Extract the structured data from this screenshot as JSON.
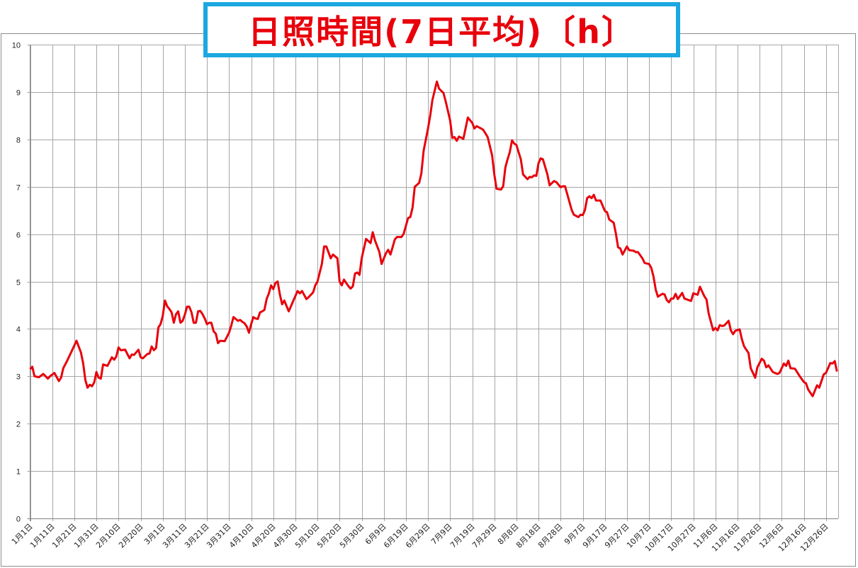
{
  "chart_data": {
    "type": "line",
    "title": "日照時間(7日平均)〔h〕",
    "xlabel": "",
    "ylabel": "",
    "ylim": [
      0,
      10
    ],
    "yticks": [
      "0",
      "1",
      "2",
      "3",
      "4",
      "5",
      "6",
      "7",
      "8",
      "9",
      "10"
    ],
    "xticks": [
      "1月1日",
      "1月11日",
      "1月21日",
      "1月31日",
      "2月10日",
      "2月20日",
      "3月1日",
      "3月11日",
      "3月21日",
      "3月31日",
      "4月10日",
      "4月20日",
      "4月30日",
      "5月10日",
      "5月20日",
      "5月30日",
      "6月9日",
      "6月19日",
      "6月29日",
      "7月9日",
      "7月19日",
      "7月29日",
      "8月8日",
      "8月18日",
      "8月28日",
      "9月7日",
      "9月17日",
      "9月27日",
      "10月7日",
      "10月17日",
      "10月27日",
      "11月6日",
      "11月16日",
      "11月26日",
      "12月6日",
      "12月16日",
      "12月26日"
    ],
    "grid": true,
    "legend": "none",
    "colors": {
      "line": "#e8000b",
      "title": "#e8000b",
      "title_border": "#1ba8e0",
      "grid": "#a6a6a6"
    },
    "series": [
      {
        "points": [
          [
            "1/1",
            3.15
          ],
          [
            "1/2",
            3.2
          ],
          [
            "1/3",
            3.0
          ],
          [
            "1/5",
            2.98
          ],
          [
            "1/7",
            3.05
          ],
          [
            "1/9",
            2.95
          ],
          [
            "1/10",
            3.0
          ],
          [
            "1/12",
            3.07
          ],
          [
            "1/14",
            2.9
          ],
          [
            "1/15",
            2.97
          ],
          [
            "1/16",
            3.17
          ],
          [
            "1/18",
            3.35
          ],
          [
            "1/20",
            3.55
          ],
          [
            "1/22",
            3.75
          ],
          [
            "1/24",
            3.5
          ],
          [
            "1/25",
            3.27
          ],
          [
            "1/26",
            2.92
          ],
          [
            "1/27",
            2.76
          ],
          [
            "1/28",
            2.82
          ],
          [
            "1/29",
            2.79
          ],
          [
            "1/30",
            2.87
          ],
          [
            "1/31",
            3.09
          ],
          [
            "2/1",
            2.97
          ],
          [
            "2/2",
            2.95
          ],
          [
            "2/3",
            3.25
          ],
          [
            "2/5",
            3.22
          ],
          [
            "2/7",
            3.4
          ],
          [
            "2/8",
            3.35
          ],
          [
            "2/9",
            3.42
          ],
          [
            "2/10",
            3.61
          ],
          [
            "2/11",
            3.55
          ],
          [
            "2/13",
            3.56
          ],
          [
            "2/15",
            3.38
          ],
          [
            "2/16",
            3.46
          ],
          [
            "2/17",
            3.45
          ],
          [
            "2/19",
            3.56
          ],
          [
            "2/20",
            3.4
          ],
          [
            "2/21",
            3.38
          ],
          [
            "2/23",
            3.47
          ],
          [
            "2/24",
            3.48
          ],
          [
            "2/25",
            3.63
          ],
          [
            "2/26",
            3.55
          ],
          [
            "2/27",
            3.6
          ],
          [
            "2/28",
            4.03
          ],
          [
            "2/29",
            4.1
          ],
          [
            "3/1",
            4.27
          ],
          [
            "3/2",
            4.6
          ],
          [
            "3/3",
            4.48
          ],
          [
            "3/4",
            4.42
          ],
          [
            "3/5",
            4.35
          ],
          [
            "3/6",
            4.13
          ],
          [
            "3/7",
            4.31
          ],
          [
            "3/8",
            4.37
          ],
          [
            "3/9",
            4.13
          ],
          [
            "3/10",
            4.17
          ],
          [
            "3/11",
            4.3
          ],
          [
            "3/12",
            4.47
          ],
          [
            "3/13",
            4.47
          ],
          [
            "3/14",
            4.35
          ],
          [
            "3/15",
            4.13
          ],
          [
            "3/16",
            4.13
          ],
          [
            "3/17",
            4.37
          ],
          [
            "3/18",
            4.38
          ],
          [
            "3/19",
            4.31
          ],
          [
            "3/20",
            4.22
          ],
          [
            "3/21",
            4.1
          ],
          [
            "3/22",
            4.13
          ],
          [
            "3/23",
            4.13
          ],
          [
            "3/24",
            3.95
          ],
          [
            "3/25",
            3.9
          ],
          [
            "3/26",
            3.7
          ],
          [
            "3/27",
            3.75
          ],
          [
            "3/29",
            3.74
          ],
          [
            "3/31",
            3.92
          ],
          [
            "4/1",
            4.07
          ],
          [
            "4/2",
            4.25
          ],
          [
            "4/3",
            4.21
          ],
          [
            "4/4",
            4.17
          ],
          [
            "4/5",
            4.19
          ],
          [
            "4/6",
            4.15
          ],
          [
            "4/7",
            4.12
          ],
          [
            "4/8",
            4.05
          ],
          [
            "4/9",
            3.92
          ],
          [
            "4/10",
            4.1
          ],
          [
            "4/11",
            4.25
          ],
          [
            "4/12",
            4.22
          ],
          [
            "4/13",
            4.21
          ],
          [
            "4/14",
            4.35
          ],
          [
            "4/15",
            4.37
          ],
          [
            "4/16",
            4.4
          ],
          [
            "4/17",
            4.63
          ],
          [
            "4/18",
            4.75
          ],
          [
            "4/19",
            4.92
          ],
          [
            "4/20",
            4.84
          ],
          [
            "4/21",
            4.97
          ],
          [
            "4/22",
            5.0
          ],
          [
            "4/23",
            4.72
          ],
          [
            "4/24",
            4.52
          ],
          [
            "4/25",
            4.6
          ],
          [
            "4/27",
            4.37
          ],
          [
            "5/1",
            4.8
          ],
          [
            "5/2",
            4.75
          ],
          [
            "5/3",
            4.8
          ],
          [
            "5/5",
            4.63
          ],
          [
            "5/6",
            4.67
          ],
          [
            "5/8",
            4.77
          ],
          [
            "5/9",
            4.92
          ],
          [
            "5/10",
            5.0
          ],
          [
            "5/12",
            5.37
          ],
          [
            "5/13",
            5.74
          ],
          [
            "5/14",
            5.74
          ],
          [
            "5/16",
            5.49
          ],
          [
            "5/17",
            5.57
          ],
          [
            "5/19",
            5.49
          ],
          [
            "5/20",
            5.0
          ],
          [
            "5/21",
            4.92
          ],
          [
            "5/22",
            5.04
          ],
          [
            "5/24",
            4.9
          ],
          [
            "5/25",
            4.85
          ],
          [
            "5/26",
            4.9
          ],
          [
            "5/27",
            5.17
          ],
          [
            "5/28",
            5.19
          ],
          [
            "5/29",
            5.14
          ],
          [
            "5/30",
            5.49
          ],
          [
            "6/1",
            5.9
          ],
          [
            "6/3",
            5.81
          ],
          [
            "6/4",
            6.04
          ],
          [
            "6/5",
            5.87
          ],
          [
            "6/7",
            5.62
          ],
          [
            "6/8",
            5.37
          ],
          [
            "6/10",
            5.6
          ],
          [
            "6/11",
            5.67
          ],
          [
            "6/12",
            5.57
          ],
          [
            "6/14",
            5.89
          ],
          [
            "6/15",
            5.94
          ],
          [
            "6/17",
            5.94
          ],
          [
            "6/18",
            6.01
          ],
          [
            "6/20",
            6.34
          ],
          [
            "6/21",
            6.36
          ],
          [
            "6/22",
            6.56
          ],
          [
            "6/23",
            7.0
          ],
          [
            "6/25",
            7.08
          ],
          [
            "6/26",
            7.28
          ],
          [
            "6/27",
            7.76
          ],
          [
            "6/29",
            8.23
          ],
          [
            "6/30",
            8.5
          ],
          [
            "7/1",
            8.83
          ],
          [
            "7/3",
            9.22
          ],
          [
            "7/4",
            9.07
          ],
          [
            "7/6",
            8.98
          ],
          [
            "7/7",
            8.8
          ],
          [
            "7/9",
            8.4
          ],
          [
            "7/10",
            8.03
          ],
          [
            "7/11",
            8.05
          ],
          [
            "7/12",
            7.97
          ],
          [
            "7/13",
            8.06
          ],
          [
            "7/15",
            8.01
          ],
          [
            "7/16",
            8.23
          ],
          [
            "7/17",
            8.46
          ],
          [
            "7/19",
            8.35
          ],
          [
            "7/20",
            8.23
          ],
          [
            "7/21",
            8.28
          ],
          [
            "7/23",
            8.23
          ],
          [
            "7/24",
            8.2
          ],
          [
            "7/26",
            8.05
          ],
          [
            "7/28",
            7.66
          ],
          [
            "7/29",
            7.26
          ],
          [
            "7/30",
            6.96
          ],
          [
            "8/1",
            6.94
          ],
          [
            "8/2",
            7.01
          ],
          [
            "8/3",
            7.41
          ],
          [
            "8/4",
            7.58
          ],
          [
            "8/5",
            7.73
          ],
          [
            "8/6",
            7.98
          ],
          [
            "8/7",
            7.91
          ],
          [
            "8/8",
            7.88
          ],
          [
            "8/10",
            7.58
          ],
          [
            "8/11",
            7.26
          ],
          [
            "8/13",
            7.16
          ],
          [
            "8/14",
            7.21
          ],
          [
            "8/15",
            7.2
          ],
          [
            "8/16",
            7.24
          ],
          [
            "8/17",
            7.23
          ],
          [
            "8/18",
            7.5
          ],
          [
            "8/19",
            7.6
          ],
          [
            "8/20",
            7.58
          ],
          [
            "8/22",
            7.26
          ],
          [
            "8/23",
            7.03
          ],
          [
            "8/25",
            7.12
          ],
          [
            "8/26",
            7.1
          ],
          [
            "8/28",
            6.99
          ],
          [
            "8/29",
            7.01
          ],
          [
            "8/30",
            7.01
          ],
          [
            "8/31",
            6.84
          ],
          [
            "9/2",
            6.51
          ],
          [
            "9/3",
            6.41
          ],
          [
            "9/5",
            6.36
          ],
          [
            "9/6",
            6.41
          ],
          [
            "9/7",
            6.4
          ],
          [
            "9/8",
            6.51
          ],
          [
            "9/9",
            6.76
          ],
          [
            "9/10",
            6.8
          ],
          [
            "9/11",
            6.76
          ],
          [
            "9/12",
            6.83
          ],
          [
            "9/13",
            6.71
          ],
          [
            "9/15",
            6.71
          ],
          [
            "9/17",
            6.49
          ],
          [
            "9/18",
            6.46
          ],
          [
            "9/19",
            6.31
          ],
          [
            "9/21",
            6.24
          ],
          [
            "9/22",
            6.01
          ],
          [
            "9/23",
            5.72
          ],
          [
            "9/24",
            5.7
          ],
          [
            "9/25",
            5.57
          ],
          [
            "9/27",
            5.74
          ],
          [
            "9/28",
            5.66
          ],
          [
            "9/30",
            5.65
          ],
          [
            "10/1",
            5.62
          ],
          [
            "10/2",
            5.62
          ],
          [
            "10/4",
            5.49
          ],
          [
            "10/5",
            5.39
          ],
          [
            "10/7",
            5.37
          ],
          [
            "10/8",
            5.29
          ],
          [
            "10/9",
            5.11
          ],
          [
            "10/10",
            4.83
          ],
          [
            "10/11",
            4.68
          ],
          [
            "10/13",
            4.74
          ],
          [
            "10/14",
            4.73
          ],
          [
            "10/15",
            4.61
          ],
          [
            "10/16",
            4.56
          ],
          [
            "10/17",
            4.64
          ],
          [
            "10/18",
            4.64
          ],
          [
            "10/19",
            4.74
          ],
          [
            "10/20",
            4.63
          ],
          [
            "10/22",
            4.76
          ],
          [
            "10/23",
            4.64
          ],
          [
            "10/26",
            4.59
          ],
          [
            "10/27",
            4.75
          ],
          [
            "10/29",
            4.72
          ],
          [
            "10/30",
            4.89
          ],
          [
            "11/1",
            4.69
          ],
          [
            "11/2",
            4.62
          ],
          [
            "11/3",
            4.32
          ],
          [
            "11/5",
            3.97
          ],
          [
            "11/6",
            4.02
          ],
          [
            "11/7",
            3.97
          ],
          [
            "11/8",
            4.08
          ],
          [
            "11/9",
            4.06
          ],
          [
            "11/10",
            4.07
          ],
          [
            "11/12",
            4.17
          ],
          [
            "11/13",
            3.97
          ],
          [
            "11/14",
            3.89
          ],
          [
            "11/15",
            3.96
          ],
          [
            "11/17",
            3.99
          ],
          [
            "11/18",
            3.78
          ],
          [
            "11/19",
            3.63
          ],
          [
            "11/21",
            3.49
          ],
          [
            "11/22",
            3.17
          ],
          [
            "11/24",
            2.97
          ],
          [
            "11/25",
            3.19
          ],
          [
            "11/27",
            3.37
          ],
          [
            "11/28",
            3.33
          ],
          [
            "11/29",
            3.19
          ],
          [
            "11/30",
            3.23
          ],
          [
            "12/2",
            3.09
          ],
          [
            "12/4",
            3.05
          ],
          [
            "12/5",
            3.07
          ],
          [
            "12/7",
            3.27
          ],
          [
            "12/8",
            3.22
          ],
          [
            "12/9",
            3.33
          ],
          [
            "12/10",
            3.17
          ],
          [
            "12/12",
            3.16
          ],
          [
            "12/14",
            3.01
          ],
          [
            "12/16",
            2.88
          ],
          [
            "12/17",
            2.85
          ],
          [
            "12/18",
            2.72
          ],
          [
            "12/20",
            2.58
          ],
          [
            "12/22",
            2.81
          ],
          [
            "12/23",
            2.76
          ],
          [
            "12/25",
            3.04
          ],
          [
            "12/26",
            3.07
          ],
          [
            "12/28",
            3.28
          ],
          [
            "12/29",
            3.27
          ],
          [
            "12/30",
            3.32
          ],
          [
            "12/31",
            3.1
          ]
        ]
      }
    ]
  }
}
